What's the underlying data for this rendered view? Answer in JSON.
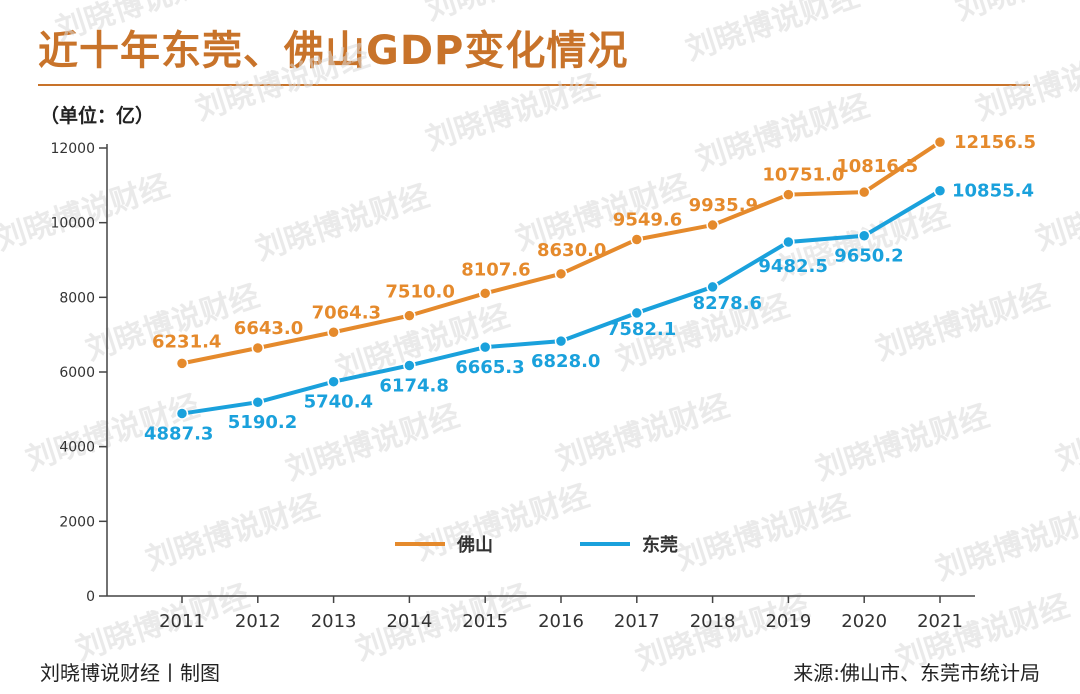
{
  "title": "近十年东莞、佛山GDP变化情况",
  "unit_label": "（单位：亿）",
  "footer": {
    "credit": "刘晓博说财经丨制图",
    "source": "来源:佛山市、东莞市统计局"
  },
  "watermark": "刘晓博说财经",
  "colors": {
    "foshan": "#e58a2c",
    "dongguan": "#1aa1dc",
    "title": "#c8732a"
  },
  "chart_data": {
    "type": "line",
    "title": "近十年东莞、佛山GDP变化情况",
    "ylabel": "（单位：亿）",
    "xlabel": "",
    "x": [
      "2011",
      "2012",
      "2013",
      "2014",
      "2015",
      "2016",
      "2017",
      "2018",
      "2019",
      "2020",
      "2021"
    ],
    "ylim": [
      0,
      12000
    ],
    "yticks": [
      0,
      2000,
      4000,
      6000,
      8000,
      10000,
      12000
    ],
    "grid": false,
    "legend_position": "bottom-center",
    "series": [
      {
        "name": "佛山",
        "values": [
          6231.4,
          6643.0,
          7064.3,
          7510.0,
          8107.6,
          8630.0,
          9549.6,
          9935.9,
          10751.0,
          10816.5,
          12156.5
        ],
        "labels": [
          "6231.4",
          "6643.0",
          "7064.3",
          "7510.0",
          "8107.6",
          "8630.0",
          "9549.6",
          "9935.9",
          "10751.0",
          "10816.5",
          "12156.5"
        ]
      },
      {
        "name": "东莞",
        "values": [
          4887.3,
          5190.2,
          5740.4,
          6174.8,
          6665.3,
          6828.0,
          7582.1,
          8278.6,
          9482.5,
          9650.2,
          10855.4
        ],
        "labels": [
          "4887.3",
          "5190.2",
          "5740.4",
          "6174.8",
          "6665.3",
          "6828.0",
          "7582.1",
          "8278.6",
          "9482.5",
          "9650.2",
          "10855.4"
        ]
      }
    ]
  }
}
